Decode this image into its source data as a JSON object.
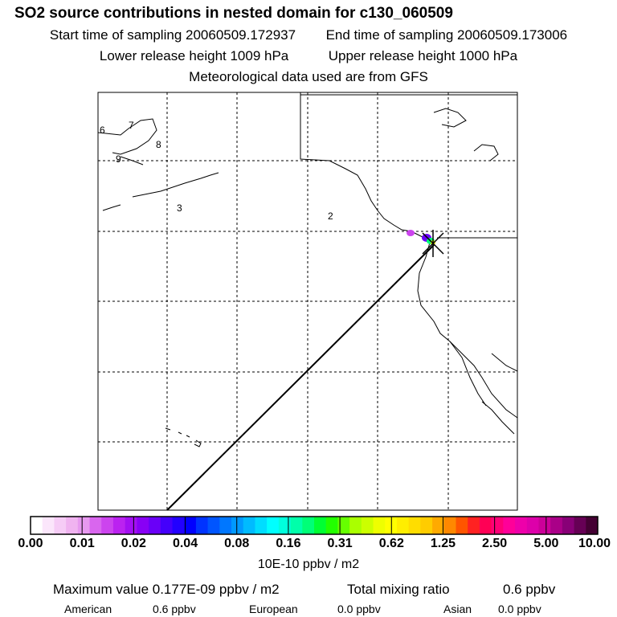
{
  "header": {
    "title": "SO2 source contributions in nested domain for c130_060509",
    "start_label": "Start time of sampling 20060509.172937",
    "end_label": "End time of sampling 20060509.173006",
    "lower_label": "Lower release height 1009 hPa",
    "upper_label": "Upper release height 1000 hPa",
    "met_label": "Meteorological data used are from GFS"
  },
  "map": {
    "region_labels": [
      "6",
      "7",
      "8",
      "9",
      "3",
      "2"
    ]
  },
  "colorbar": {
    "ticks": [
      "0.00",
      "0.01",
      "0.02",
      "0.04",
      "0.08",
      "0.16",
      "0.31",
      "0.62",
      "1.25",
      "2.50",
      "5.00",
      "10.00"
    ],
    "unit": "10E-10 ppbv / m2",
    "colors": [
      "#ffffff",
      "#fbe6fb",
      "#f6ccf6",
      "#f0b3f0",
      "#e799ef",
      "#d966ee",
      "#cc44ee",
      "#bb22f0",
      "#a30ff2",
      "#8800f5",
      "#6a00f8",
      "#4400fb",
      "#2200ff",
      "#0000ff",
      "#0033ff",
      "#0055ff",
      "#0077ff",
      "#0099ff",
      "#00bbff",
      "#00ddff",
      "#00ffff",
      "#00ffdd",
      "#00ffaa",
      "#00ff77",
      "#00ff33",
      "#22ff00",
      "#66ff00",
      "#aaff00",
      "#ccff00",
      "#eeff00",
      "#ffff00",
      "#ffee00",
      "#ffdd00",
      "#ffcc00",
      "#ffaa00",
      "#ff8800",
      "#ff5500",
      "#ff2222",
      "#ff0055",
      "#ff0077",
      "#ff0099",
      "#ee00aa",
      "#dd00aa",
      "#cc0099",
      "#aa0088",
      "#880077",
      "#660055",
      "#440033"
    ]
  },
  "summary": {
    "max_label": "Maximum value  0.177E-09 ppbv / m2",
    "total_label": "Total mixing ratio",
    "total_value": "0.6 ppbv",
    "american_label": "American",
    "american_value": "0.6 ppbv",
    "european_label": "European",
    "european_value": "0.0 ppbv",
    "asian_label": "Asian",
    "asian_value": "0.0 ppbv"
  }
}
